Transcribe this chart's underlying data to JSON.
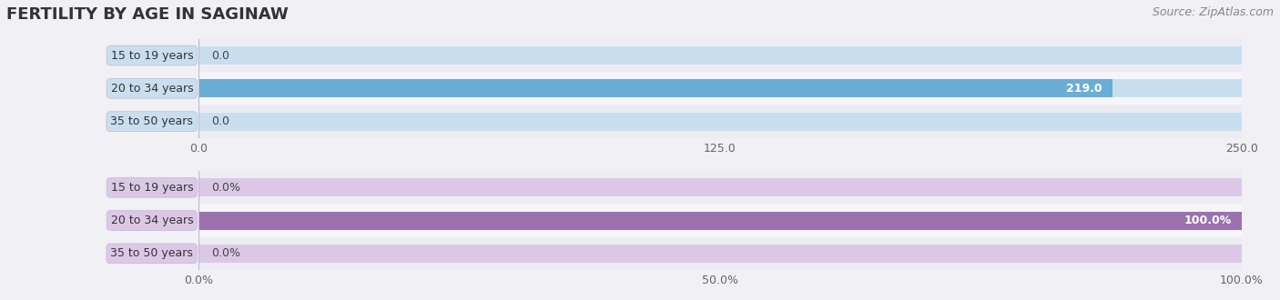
{
  "title": "FERTILITY BY AGE IN SAGINAW",
  "source": "Source: ZipAtlas.com",
  "top_chart": {
    "categories": [
      "15 to 19 years",
      "20 to 34 years",
      "35 to 50 years"
    ],
    "values": [
      0.0,
      219.0,
      0.0
    ],
    "xlim": [
      0,
      250.0
    ],
    "xticks": [
      0.0,
      125.0,
      250.0
    ],
    "xticklabels": [
      "0.0",
      "125.0",
      "250.0"
    ],
    "bar_color_full": "#6aaed6",
    "bar_color_empty": "#c9dff0"
  },
  "bottom_chart": {
    "categories": [
      "15 to 19 years",
      "20 to 34 years",
      "35 to 50 years"
    ],
    "values": [
      0.0,
      100.0,
      0.0
    ],
    "xlim": [
      0,
      100.0
    ],
    "xticks": [
      0.0,
      50.0,
      100.0
    ],
    "xticklabels": [
      "0.0%",
      "50.0%",
      "100.0%"
    ],
    "bar_color_full": "#9b72ae",
    "bar_color_empty": "#dcc8e6"
  },
  "fig_bg_color": "#f0f0f5",
  "title_color": "#333333",
  "source_color": "#888888",
  "label_fontsize": 9,
  "tick_fontsize": 9,
  "title_fontsize": 13,
  "source_fontsize": 9,
  "bar_height": 0.55,
  "value_label_color": "#444444",
  "row_colors": [
    "#ececf2",
    "#f5f5fa"
  ]
}
